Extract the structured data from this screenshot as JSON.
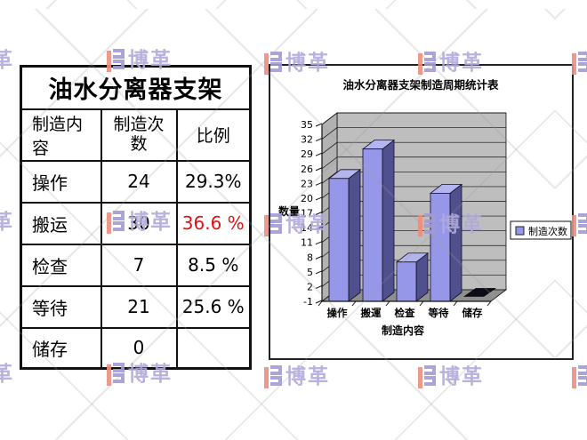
{
  "watermark": {
    "brand_text": "博革",
    "text_color": "#b1aadb",
    "icon_red": "#ef8d80",
    "icon_purple": "#a29bd5",
    "positions": [
      [
        -58,
        55
      ],
      [
        120,
        55
      ],
      [
        297,
        58
      ],
      [
        470,
        58
      ],
      [
        643,
        58
      ],
      [
        -58,
        237
      ],
      [
        120,
        237
      ],
      [
        297,
        240
      ],
      [
        470,
        240
      ],
      [
        643,
        240
      ],
      [
        -58,
        408
      ],
      [
        120,
        408
      ],
      [
        297,
        411
      ],
      [
        470,
        411
      ],
      [
        643,
        411
      ]
    ]
  },
  "table": {
    "title": "油水分离器支架",
    "headers": [
      "制造内容",
      "制造次数",
      "比例"
    ],
    "highlight_color": "#e01313",
    "rows": [
      {
        "content": "操作",
        "count": "24",
        "ratio": "29.3%"
      },
      {
        "content": "搬运",
        "count": "30",
        "ratio": "36.6 %"
      },
      {
        "content": "检查",
        "count": "7",
        "ratio": "8.5 %"
      },
      {
        "content": "等待",
        "count": "21",
        "ratio": "25.6 %"
      },
      {
        "content": "储存",
        "count": "0",
        "ratio": ""
      }
    ]
  },
  "chart_data": {
    "type": "bar",
    "style": "3d-column",
    "title": "油水分离器支架制造周期统计表",
    "categories": [
      "操作",
      "搬運",
      "检查",
      "等待",
      "储存"
    ],
    "values": [
      24,
      30,
      7,
      21,
      0
    ],
    "series": [
      {
        "name": "制造次数",
        "values": [
          24,
          30,
          7,
          21,
          0
        ]
      }
    ],
    "legend_label": "制造次数",
    "legend_position": "right",
    "xlabel": "制造内容",
    "ylabel": "数量",
    "ylim": [
      -1,
      35
    ],
    "ytick_step": 3,
    "yticks": [
      35,
      32,
      29,
      26,
      23,
      20,
      17,
      14,
      11,
      8,
      5,
      2,
      -1
    ],
    "grid": true,
    "bar_color": "#9797ea",
    "bar_side_color": "#50508e",
    "bar_top_color": "#b4b4f0",
    "zero_bar_color": "#0d0d1a",
    "wall_color": "#bebebe",
    "side_wall_color": "#b2b2b2",
    "floor_color": "#8f8f8f"
  }
}
